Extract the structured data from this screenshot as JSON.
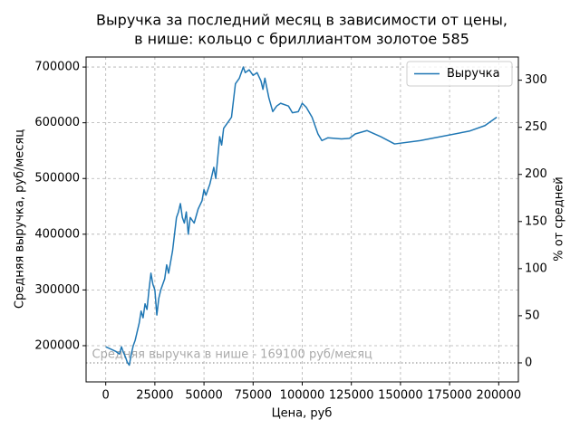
{
  "chart_data": {
    "type": "line",
    "title": [
      "Выручка за последний месяц в зависимости от цены,",
      "в нише: кольцо с бриллиантом золотое 585"
    ],
    "xlabel": "Цена, руб",
    "ylabel": "Средняя выручка, руб/месяц",
    "y2label": "% от средней",
    "x": [
      0,
      5000,
      7000,
      8000,
      9000,
      10000,
      11000,
      12000,
      13000,
      14000,
      15000,
      16000,
      17000,
      18000,
      19000,
      20000,
      21000,
      22000,
      23000,
      24000,
      25000,
      26000,
      27000,
      28000,
      30000,
      31000,
      32000,
      34000,
      35000,
      36000,
      37000,
      38000,
      39000,
      40000,
      41000,
      42000,
      43000,
      45000,
      47000,
      49000,
      50000,
      51000,
      53000,
      55000,
      56000,
      58000,
      59000,
      60000,
      62000,
      64000,
      65000,
      66000,
      68000,
      70000,
      71000,
      73000,
      75000,
      77000,
      79000,
      80000,
      81000,
      83000,
      85000,
      87000,
      89000,
      93000,
      95000,
      98000,
      100000,
      102000,
      105000,
      108000,
      110000,
      113000,
      120000,
      124000,
      127000,
      133000,
      140000,
      147000,
      160000,
      185000,
      193000,
      199000
    ],
    "series": [
      {
        "name": "Выручка",
        "color": "#1f77b4",
        "values": [
          198000,
          190000,
          185000,
          198000,
          188000,
          180000,
          170000,
          165000,
          185000,
          200000,
          210000,
          225000,
          240000,
          262000,
          250000,
          275000,
          265000,
          300000,
          330000,
          310000,
          300000,
          255000,
          285000,
          300000,
          320000,
          345000,
          330000,
          370000,
          400000,
          430000,
          440000,
          455000,
          430000,
          420000,
          440000,
          400000,
          430000,
          420000,
          445000,
          460000,
          480000,
          470000,
          490000,
          520000,
          500000,
          575000,
          560000,
          590000,
          600000,
          610000,
          640000,
          670000,
          680000,
          700000,
          690000,
          695000,
          685000,
          690000,
          675000,
          660000,
          680000,
          645000,
          620000,
          630000,
          635000,
          630000,
          618000,
          620000,
          635000,
          628000,
          610000,
          580000,
          568000,
          573000,
          571000,
          572000,
          580000,
          586000,
          575000,
          562000,
          568000,
          585000,
          595000,
          610000
        ]
      }
    ],
    "average_line": 169100,
    "average_color": "#aaaaaa",
    "annotation": "Средняя выручка в нише - 169100 руб/месяц",
    "xlim": [
      -10000,
      210000
    ],
    "xticks": [
      0,
      25000,
      50000,
      75000,
      100000,
      125000,
      150000,
      175000,
      200000
    ],
    "ylim": [
      135000,
      718000
    ],
    "yticks": [
      200000,
      300000,
      400000,
      500000,
      600000,
      700000
    ],
    "y2lim": [
      -20.2,
      324.6
    ],
    "y2ticks": [
      0,
      50,
      100,
      150,
      200,
      250,
      300
    ],
    "grid": true,
    "legend": "upper right"
  }
}
